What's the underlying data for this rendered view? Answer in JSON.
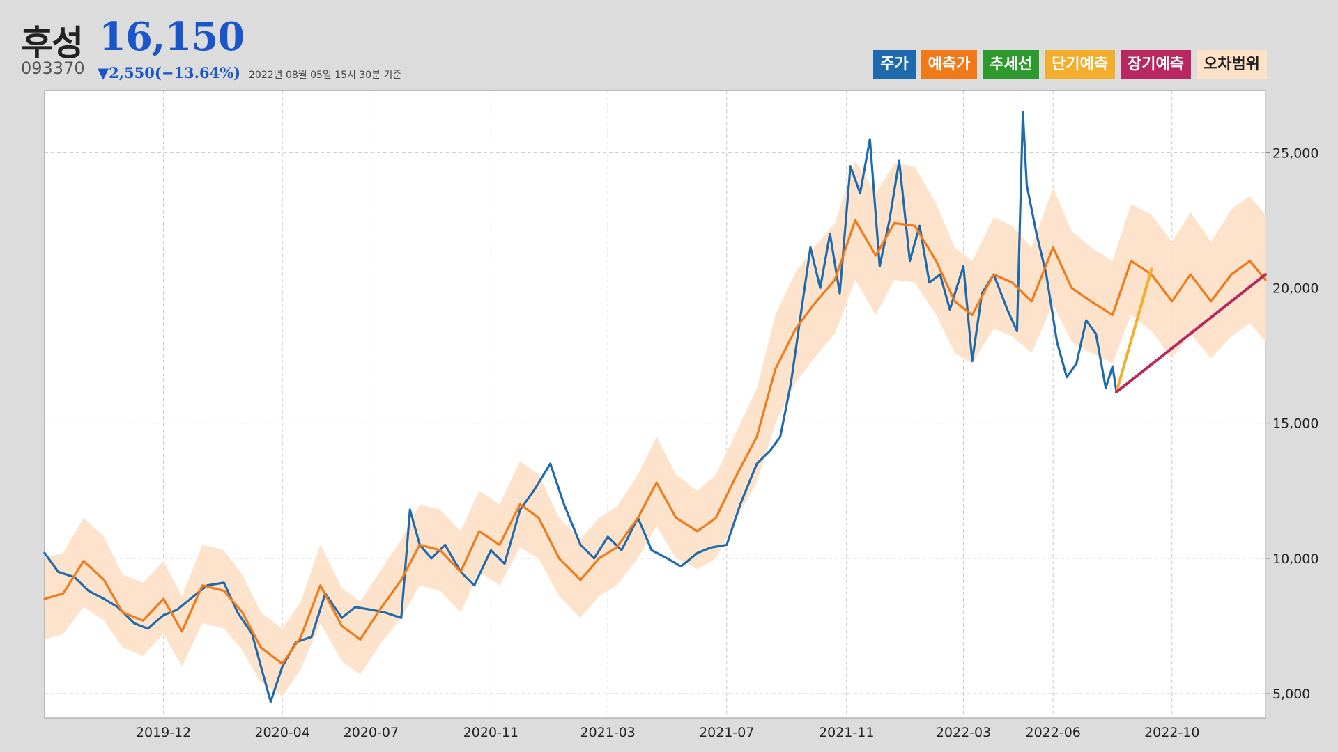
{
  "header": {
    "name": "후성",
    "price": "16,150",
    "code": "093370",
    "change": "▼2,550(−13.64%)",
    "as_of": "2022년 08월 05일 15시 30분 기준"
  },
  "legend": [
    {
      "label": "주가",
      "color": "#1f6aad"
    },
    {
      "label": "예측가",
      "color": "#f07a1a"
    },
    {
      "label": "추세선",
      "color": "#2e9a2e"
    },
    {
      "label": "단기예측",
      "color": "#f2ae2c"
    },
    {
      "label": "장기예측",
      "color": "#b8285e"
    },
    {
      "label": "오차범위",
      "color": "#fde2c8"
    }
  ],
  "chart_data": {
    "type": "line",
    "x_ticks": [
      "2019-12",
      "2020-04",
      "2020-07",
      "2020-11",
      "2021-03",
      "2021-07",
      "2021-11",
      "2022-03",
      "2022-06",
      "2022-10"
    ],
    "y_ticks": [
      "5,000",
      "10,000",
      "15,000",
      "20,000",
      "25,000"
    ],
    "xlim": [
      "2019-08-01",
      "2023-01-05"
    ],
    "ylim": [
      4100,
      27300
    ],
    "grid": true,
    "series": [
      {
        "name": "주가",
        "color": "#1f6aad",
        "x": [
          "2019-08-01",
          "2019-08-15",
          "2019-09-01",
          "2019-09-15",
          "2019-10-01",
          "2019-10-15",
          "2019-11-01",
          "2019-11-15",
          "2019-12-01",
          "2019-12-15",
          "2020-01-01",
          "2020-01-15",
          "2020-02-01",
          "2020-02-15",
          "2020-03-01",
          "2020-03-10",
          "2020-03-20",
          "2020-04-01",
          "2020-04-15",
          "2020-05-01",
          "2020-05-15",
          "2020-06-01",
          "2020-06-15",
          "2020-07-01",
          "2020-07-15",
          "2020-08-01",
          "2020-08-10",
          "2020-08-20",
          "2020-09-01",
          "2020-09-15",
          "2020-10-01",
          "2020-10-15",
          "2020-11-01",
          "2020-11-15",
          "2020-12-01",
          "2020-12-15",
          "2021-01-01",
          "2021-01-15",
          "2021-02-01",
          "2021-02-15",
          "2021-03-01",
          "2021-03-15",
          "2021-04-01",
          "2021-04-15",
          "2021-05-01",
          "2021-05-15",
          "2021-06-01",
          "2021-06-15",
          "2021-07-01",
          "2021-07-15",
          "2021-08-01",
          "2021-08-15",
          "2021-08-25",
          "2021-09-05",
          "2021-09-15",
          "2021-09-25",
          "2021-10-05",
          "2021-10-15",
          "2021-10-25",
          "2021-11-05",
          "2021-11-15",
          "2021-11-25",
          "2021-12-05",
          "2021-12-15",
          "2021-12-25",
          "2022-01-05",
          "2022-01-15",
          "2022-01-25",
          "2022-02-05",
          "2022-02-15",
          "2022-03-01",
          "2022-03-10",
          "2022-03-20",
          "2022-04-01",
          "2022-04-15",
          "2022-04-25",
          "2022-05-01",
          "2022-05-05",
          "2022-05-15",
          "2022-05-25",
          "2022-06-05",
          "2022-06-15",
          "2022-06-25",
          "2022-07-05",
          "2022-07-15",
          "2022-07-25",
          "2022-08-01",
          "2022-08-05"
        ],
        "values": [
          10200,
          9500,
          9300,
          8800,
          8500,
          8200,
          7600,
          7400,
          7900,
          8100,
          8600,
          9000,
          9100,
          8000,
          7200,
          6000,
          4700,
          6000,
          6900,
          7100,
          8700,
          7800,
          8200,
          8100,
          8000,
          7800,
          11800,
          10500,
          10000,
          10500,
          9500,
          9000,
          10300,
          9800,
          11800,
          12500,
          13500,
          12000,
          10500,
          10000,
          10800,
          10300,
          11500,
          10300,
          10000,
          9700,
          10200,
          10400,
          10500,
          12000,
          13500,
          14000,
          14500,
          16500,
          19000,
          21500,
          20000,
          22000,
          19800,
          24500,
          23500,
          25500,
          20800,
          22500,
          24700,
          21000,
          22300,
          20200,
          20500,
          19200,
          20800,
          17300,
          19800,
          20500,
          19200,
          18400,
          26500,
          23800,
          22000,
          20500,
          18000,
          16700,
          17200,
          18800,
          18300,
          16300,
          17100,
          16150
        ]
      },
      {
        "name": "예측가",
        "color": "#f07a1a",
        "x": [
          "2019-08-01",
          "2019-08-20",
          "2019-09-10",
          "2019-10-01",
          "2019-10-20",
          "2019-11-10",
          "2019-12-01",
          "2019-12-20",
          "2020-01-10",
          "2020-02-01",
          "2020-02-20",
          "2020-03-10",
          "2020-04-01",
          "2020-04-20",
          "2020-05-10",
          "2020-06-01",
          "2020-06-20",
          "2020-07-10",
          "2020-08-01",
          "2020-08-20",
          "2020-09-10",
          "2020-10-01",
          "2020-10-20",
          "2020-11-10",
          "2020-12-01",
          "2020-12-20",
          "2021-01-10",
          "2021-02-01",
          "2021-02-20",
          "2021-03-10",
          "2021-04-01",
          "2021-04-20",
          "2021-05-10",
          "2021-06-01",
          "2021-06-20",
          "2021-07-10",
          "2021-08-01",
          "2021-08-20",
          "2021-09-10",
          "2021-10-01",
          "2021-10-20",
          "2021-11-10",
          "2021-12-01",
          "2021-12-20",
          "2022-01-10",
          "2022-02-01",
          "2022-02-20",
          "2022-03-10",
          "2022-04-01",
          "2022-04-20",
          "2022-05-10",
          "2022-06-01",
          "2022-06-20",
          "2022-07-10",
          "2022-08-01",
          "2022-08-20",
          "2022-09-10",
          "2022-10-01",
          "2022-10-20",
          "2022-11-10",
          "2022-12-01",
          "2022-12-20",
          "2023-01-05"
        ],
        "values": [
          8500,
          8700,
          9900,
          9200,
          8000,
          7700,
          8500,
          7300,
          9000,
          8800,
          8000,
          6700,
          6100,
          7100,
          9000,
          7500,
          7000,
          8100,
          9200,
          10500,
          10300,
          9500,
          11000,
          10500,
          12000,
          11500,
          10000,
          9200,
          10000,
          10400,
          11500,
          12800,
          11500,
          11000,
          11500,
          13000,
          14500,
          17000,
          18500,
          19500,
          20300,
          22500,
          21200,
          22400,
          22300,
          21000,
          19500,
          19000,
          20500,
          20200,
          19500,
          21500,
          20000,
          19500,
          19000,
          21000,
          20500,
          19500,
          20500,
          19500,
          20500,
          21000,
          20300
        ]
      },
      {
        "name": "단기예측",
        "color": "#f2ae2c",
        "x": [
          "2022-08-05",
          "2022-09-10"
        ],
        "values": [
          16150,
          20700
        ]
      },
      {
        "name": "장기예측",
        "color": "#b8285e",
        "x": [
          "2022-08-05",
          "2023-01-05"
        ],
        "values": [
          16150,
          20500
        ]
      }
    ],
    "error_band": {
      "name": "오차범위",
      "color": "#fde2c8",
      "x": [
        "2019-08-01",
        "2019-08-20",
        "2019-09-10",
        "2019-10-01",
        "2019-10-20",
        "2019-11-10",
        "2019-12-01",
        "2019-12-20",
        "2020-01-10",
        "2020-02-01",
        "2020-02-20",
        "2020-03-10",
        "2020-04-01",
        "2020-04-20",
        "2020-05-10",
        "2020-06-01",
        "2020-06-20",
        "2020-07-10",
        "2020-08-01",
        "2020-08-20",
        "2020-09-10",
        "2020-10-01",
        "2020-10-20",
        "2020-11-10",
        "2020-12-01",
        "2020-12-20",
        "2021-01-10",
        "2021-02-01",
        "2021-02-20",
        "2021-03-10",
        "2021-04-01",
        "2021-04-20",
        "2021-05-10",
        "2021-06-01",
        "2021-06-20",
        "2021-07-10",
        "2021-08-01",
        "2021-08-20",
        "2021-09-10",
        "2021-10-01",
        "2021-10-20",
        "2021-11-10",
        "2021-12-01",
        "2021-12-20",
        "2022-01-10",
        "2022-02-01",
        "2022-02-20",
        "2022-03-10",
        "2022-04-01",
        "2022-04-20",
        "2022-05-10",
        "2022-06-01",
        "2022-06-20",
        "2022-07-10",
        "2022-08-01",
        "2022-08-20",
        "2022-09-10",
        "2022-10-01",
        "2022-10-20",
        "2022-11-10",
        "2022-12-01",
        "2022-12-20",
        "2023-01-05"
      ],
      "lower": [
        7000,
        7200,
        8200,
        7700,
        6700,
        6400,
        7200,
        6000,
        7600,
        7400,
        6600,
        5400,
        4900,
        5900,
        7600,
        6200,
        5700,
        6800,
        7800,
        9000,
        8800,
        8000,
        9500,
        9000,
        10400,
        10000,
        8600,
        7800,
        8600,
        9000,
        10000,
        11200,
        10000,
        9600,
        10000,
        11400,
        12800,
        15000,
        16500,
        17500,
        18300,
        20300,
        19000,
        20300,
        20200,
        19000,
        17600,
        17200,
        18500,
        18200,
        17600,
        19400,
        18000,
        17600,
        17200,
        19000,
        18400,
        17400,
        18300,
        17400,
        18200,
        18700,
        18000
      ],
      "upper": [
        10000,
        10200,
        11500,
        10800,
        9400,
        9100,
        9900,
        8600,
        10500,
        10300,
        9400,
        8000,
        7400,
        8400,
        10500,
        8900,
        8400,
        9500,
        10700,
        12000,
        11800,
        11000,
        12500,
        12000,
        13600,
        13100,
        11500,
        10700,
        11500,
        11900,
        13100,
        14500,
        13100,
        12500,
        13100,
        14600,
        16300,
        19000,
        20600,
        21600,
        22400,
        24700,
        23500,
        24600,
        24500,
        23100,
        21500,
        21000,
        22600,
        22300,
        21500,
        23700,
        22100,
        21500,
        21000,
        23100,
        22700,
        21700,
        22800,
        21700,
        22900,
        23400,
        22700
      ]
    }
  }
}
